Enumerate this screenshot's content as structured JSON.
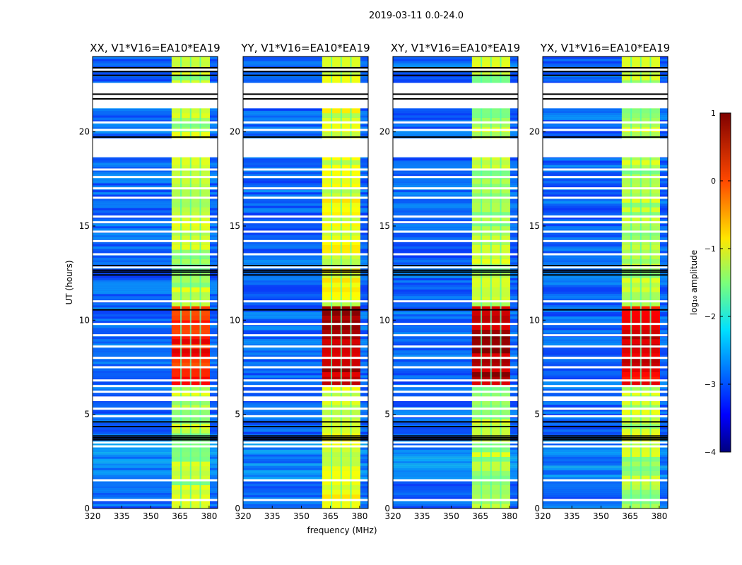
{
  "chart_data": {
    "type": "heatmap",
    "suptitle": "2019-03-11 0.0-24.0",
    "xlabel": "frequency (MHz)",
    "ylabel": "UT (hours)",
    "xlim": [
      320,
      384.4
    ],
    "ylim": [
      0,
      24
    ],
    "xticks": [
      320,
      335,
      350,
      365,
      380
    ],
    "yticks": [
      0,
      5,
      10,
      15,
      20
    ],
    "panels": [
      {
        "title": "XX, V1*V16=EA10*EA19",
        "band_level": 0.55,
        "core_level": 0.85
      },
      {
        "title": "YY, V1*V16=EA10*EA19",
        "band_level": 0.6,
        "core_level": 0.95
      },
      {
        "title": "XY, V1*V16=EA10*EA19",
        "band_level": 0.55,
        "core_level": 0.95
      },
      {
        "title": "YX, V1*V16=EA10*EA19",
        "band_level": 0.55,
        "core_level": 0.9
      }
    ],
    "rfi_band_mhz": [
      360.7,
      380.4
    ],
    "rfi_gaps_mhz": [
      365.5,
      370.5,
      375.5
    ],
    "core_ut_range": [
      6.5,
      10.5
    ],
    "flagged_ut_ranges": [
      [
        21.25,
        22.6
      ],
      [
        18.65,
        19.65
      ],
      [
        12.75,
        12.85
      ],
      [
        5.7,
        5.95
      ],
      [
        3.45,
        3.55
      ]
    ],
    "black_ut_lines": [
      22.0,
      21.75,
      19.72,
      12.4,
      12.55,
      12.65,
      12.9,
      10.55,
      4.35,
      4.6,
      3.85,
      3.75,
      3.65,
      23.4,
      23.2,
      23.0
    ],
    "white_ut_lines": [
      23.3,
      20.5,
      20.1,
      18.0,
      17.6,
      17.0,
      16.5,
      15.5,
      15.2,
      14.7,
      14.2,
      13.5,
      11.0,
      9.8,
      9.2,
      8.6,
      8.0,
      7.5,
      6.8,
      6.5,
      6.2,
      5.3,
      4.9,
      3.3,
      1.5,
      0.45
    ],
    "colorbar": {
      "label": "log₁₀ amplitude",
      "range": [
        -4,
        1
      ],
      "ticks": [
        "1",
        "0",
        "−1",
        "−2",
        "−3",
        "−4"
      ],
      "colormap": "jet"
    }
  }
}
